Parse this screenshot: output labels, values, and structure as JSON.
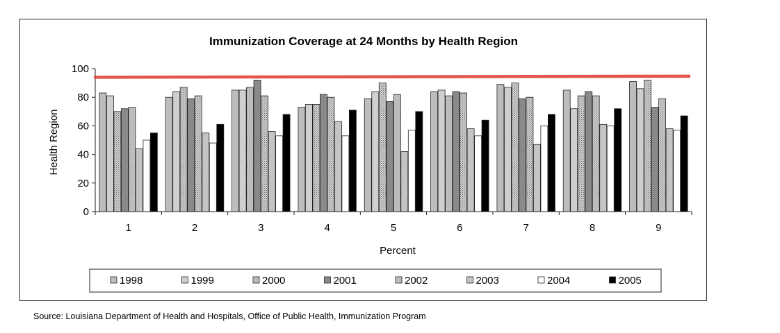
{
  "chart_data": {
    "type": "bar",
    "title": "Immunization Coverage at 24 Months by Health Region",
    "xlabel": "Percent",
    "ylabel": "Health Region",
    "categories": [
      "1",
      "2",
      "3",
      "4",
      "5",
      "6",
      "7",
      "8",
      "9"
    ],
    "ylim": [
      0,
      100
    ],
    "yticks": [
      "0",
      "20",
      "40",
      "60",
      "80",
      "100"
    ],
    "grid": false,
    "legend_position": "bottom",
    "reference_line": {
      "value": 94,
      "color": "#e0443a"
    },
    "series": [
      {
        "name": "1998",
        "fill": "#bdbdbd",
        "pattern": "solid",
        "values": [
          83,
          80,
          85,
          73,
          79,
          84,
          89,
          85,
          91
        ]
      },
      {
        "name": "1999",
        "fill": "#cfcfcf",
        "pattern": "solid",
        "values": [
          81,
          84,
          85,
          75,
          84,
          85,
          87,
          72,
          86
        ]
      },
      {
        "name": "2000",
        "fill": "#b0b0b0",
        "pattern": "dots",
        "values": [
          70,
          87,
          87,
          75,
          90,
          81,
          90,
          81,
          92
        ]
      },
      {
        "name": "2001",
        "fill": "#8a8a8a",
        "pattern": "solid",
        "values": [
          72,
          79,
          92,
          82,
          77,
          84,
          79,
          84,
          73
        ]
      },
      {
        "name": "2002",
        "fill": "#d6d6d6",
        "pattern": "dots",
        "values": [
          73,
          81,
          81,
          80,
          82,
          83,
          80,
          81,
          79
        ]
      },
      {
        "name": "2003",
        "fill": "#c4c4c4",
        "pattern": "solid",
        "values": [
          44,
          55,
          56,
          63,
          42,
          58,
          47,
          61,
          58
        ]
      },
      {
        "name": "2004",
        "fill": "#ffffff",
        "pattern": "solid",
        "values": [
          50,
          48,
          53,
          53,
          57,
          53,
          60,
          60,
          57
        ]
      },
      {
        "name": "2005",
        "fill": "#000000",
        "pattern": "solid",
        "values": [
          55,
          61,
          68,
          71,
          70,
          64,
          68,
          72,
          67
        ]
      }
    ]
  },
  "source": "Source: Louisiana Department of Health and Hospitals, Office of Public Health, Immunization Program"
}
